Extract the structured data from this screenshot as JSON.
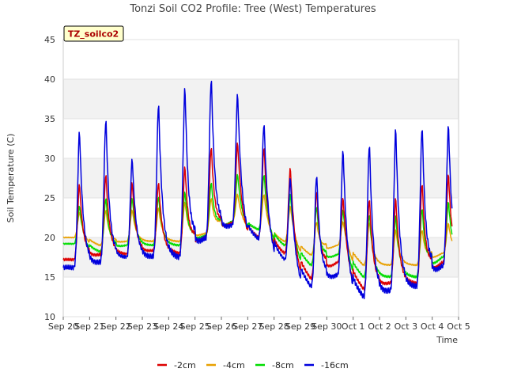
{
  "chart_data": {
    "type": "line",
    "title": "Tonzi Soil CO2 Profile: Tree (West) Temperatures",
    "xlabel": "Time",
    "ylabel": "Soil Temperature (C)",
    "ylim": [
      10,
      45
    ],
    "yticks": [
      10,
      15,
      20,
      25,
      30,
      35,
      40,
      45
    ],
    "xlim": [
      0,
      15
    ],
    "xtick_labels": [
      "Sep 20",
      "Sep 21",
      "Sep 22",
      "Sep 23",
      "Sep 24",
      "Sep 25",
      "Sep 26",
      "Sep 27",
      "Sep 28",
      "Sep 29",
      "Sep 30",
      "Oct 1",
      "Oct 2",
      "Oct 3",
      "Oct 4",
      "Oct 5"
    ],
    "grid": "horizontal bands",
    "legend_position": "bottom",
    "annotation": "TZ_soilco2",
    "series": [
      {
        "name": "-2cm",
        "color": "#dd0000",
        "min": [
          17.2,
          17.8,
          17.9,
          18.3,
          18.0,
          20.0,
          21.8,
          20.0,
          18.0,
          14.8,
          16.8,
          13.5,
          14.2,
          14.2,
          16.8
        ],
        "max": [
          26.8,
          28.0,
          27.0,
          27.0,
          29.0,
          31.5,
          32.0,
          31.5,
          28.8,
          26.0,
          25.0,
          25.0,
          25.0,
          27.0,
          28.0
        ]
      },
      {
        "name": "-4cm",
        "color": "#e8a000",
        "min": [
          20.0,
          19.0,
          19.5,
          19.5,
          19.5,
          20.5,
          22.0,
          21.0,
          19.5,
          17.8,
          19.0,
          16.5,
          16.5,
          16.5,
          18.0
        ],
        "max": [
          23.2,
          23.5,
          23.5,
          23.8,
          24.5,
          25.0,
          25.5,
          25.5,
          24.0,
          22.0,
          22.0,
          22.0,
          21.0,
          21.0,
          21.8
        ]
      },
      {
        "name": "-8cm",
        "color": "#00dd00",
        "min": [
          19.2,
          18.2,
          19.0,
          19.0,
          19.0,
          20.2,
          22.0,
          21.0,
          19.0,
          16.5,
          17.8,
          15.0,
          15.0,
          15.0,
          17.5
        ],
        "max": [
          24.0,
          25.0,
          25.0,
          25.2,
          25.8,
          27.0,
          28.0,
          28.0,
          25.5,
          24.0,
          23.5,
          23.0,
          22.8,
          23.8,
          24.5
        ]
      },
      {
        "name": "-16cm",
        "color": "#0000dd",
        "min": [
          16.2,
          16.8,
          17.5,
          17.5,
          17.5,
          19.8,
          21.5,
          19.8,
          17.2,
          13.8,
          15.2,
          12.5,
          13.2,
          13.8,
          16.3
        ],
        "max": [
          33.5,
          35.0,
          30.0,
          37.0,
          39.0,
          40.2,
          38.2,
          34.5,
          27.5,
          28.0,
          31.0,
          32.0,
          33.8,
          34.2,
          34.2
        ]
      }
    ]
  }
}
